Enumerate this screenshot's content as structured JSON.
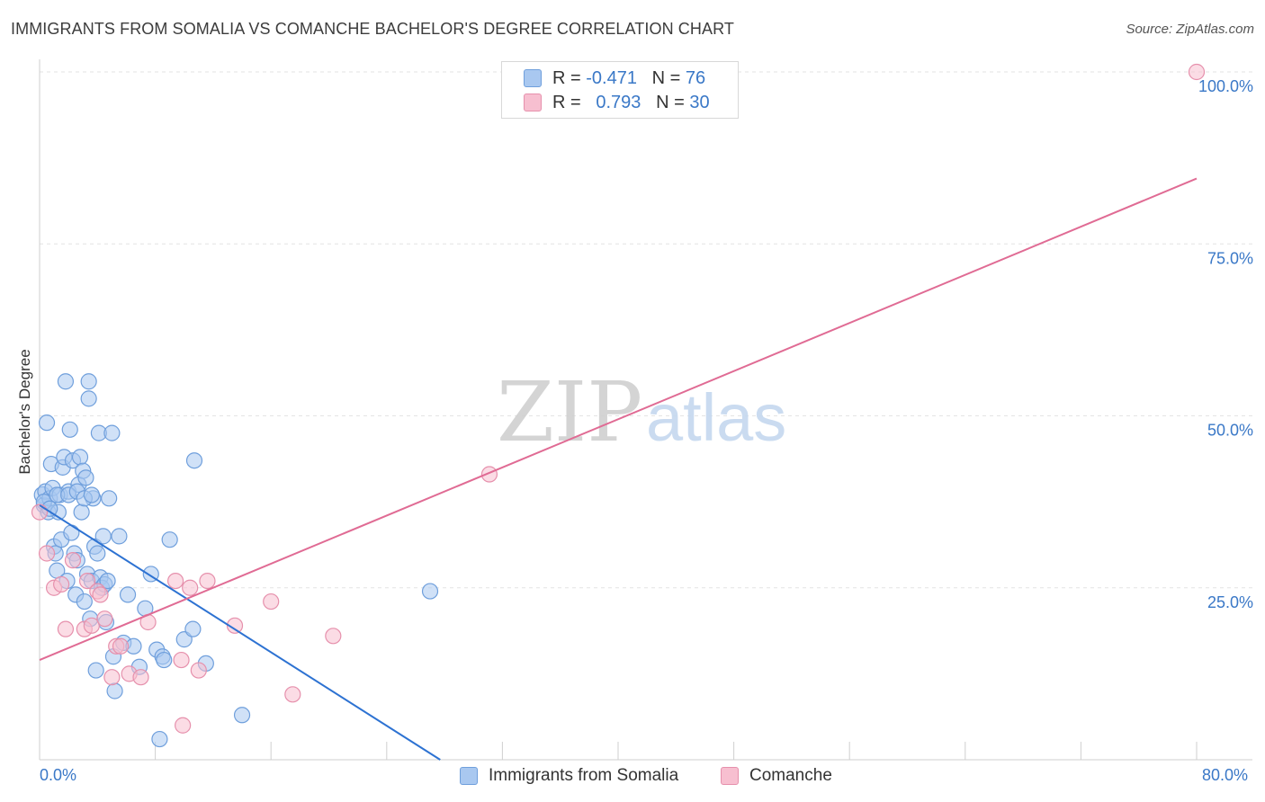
{
  "header": {
    "title": "IMMIGRANTS FROM SOMALIA VS COMANCHE BACHELOR'S DEGREE CORRELATION CHART",
    "source": "Source: ZipAtlas.com"
  },
  "stats_legend": {
    "rows": [
      {
        "r_label": "R =",
        "r_value": "-0.471",
        "n_label": "N =",
        "n_value": "76",
        "color": "#a9c8f0",
        "border": "#6f9fdc"
      },
      {
        "r_label": "R =",
        "r_value": "0.793",
        "n_label": "N =",
        "n_value": "30",
        "color": "#f7bfd0",
        "border": "#e690ac"
      }
    ]
  },
  "watermark": {
    "zip": "ZIP",
    "atlas": "atlas"
  },
  "chart_data": {
    "type": "scatter",
    "title": "IMMIGRANTS FROM SOMALIA VS COMANCHE BACHELOR'S DEGREE CORRELATION CHART",
    "xlabel": "",
    "ylabel": "Bachelor's Degree",
    "xlim": [
      0,
      80
    ],
    "ylim": [
      0,
      100
    ],
    "x_tick_labels": [
      "0.0%",
      "80.0%"
    ],
    "y_ticks": [
      25,
      50,
      75,
      100
    ],
    "y_tick_labels": [
      "25.0%",
      "50.0%",
      "75.0%",
      "100.0%"
    ],
    "grid": true,
    "legend": [
      "Immigrants from Somalia",
      "Comanche"
    ],
    "series": [
      {
        "name": "Immigrants from Somalia",
        "color": "#6f9fdc",
        "fill": "#a9c8f0",
        "line_color": "#2d72d2",
        "trend": {
          "x": [
            0,
            27.7
          ],
          "y": [
            37.0,
            0
          ]
        },
        "points": [
          [
            0.2,
            38.5
          ],
          [
            0.3,
            37.0
          ],
          [
            0.4,
            39.0
          ],
          [
            0.5,
            49.0
          ],
          [
            0.6,
            36.0
          ],
          [
            0.7,
            38.0
          ],
          [
            0.8,
            43.0
          ],
          [
            0.9,
            39.5
          ],
          [
            1.0,
            31.0
          ],
          [
            1.1,
            30.0
          ],
          [
            1.2,
            27.5
          ],
          [
            1.3,
            36.0
          ],
          [
            1.4,
            38.5
          ],
          [
            1.5,
            32.0
          ],
          [
            1.6,
            42.5
          ],
          [
            1.7,
            44.0
          ],
          [
            1.8,
            55.0
          ],
          [
            1.9,
            26.0
          ],
          [
            2.0,
            39.0
          ],
          [
            2.1,
            48.0
          ],
          [
            2.2,
            33.0
          ],
          [
            2.3,
            43.5
          ],
          [
            2.4,
            30.0
          ],
          [
            2.5,
            24.0
          ],
          [
            2.6,
            29.0
          ],
          [
            2.7,
            40.0
          ],
          [
            2.8,
            44.0
          ],
          [
            2.9,
            36.0
          ],
          [
            3.0,
            42.0
          ],
          [
            3.1,
            23.0
          ],
          [
            3.2,
            41.0
          ],
          [
            3.3,
            27.0
          ],
          [
            3.4,
            55.0
          ],
          [
            3.4,
            52.5
          ],
          [
            3.5,
            20.5
          ],
          [
            3.6,
            26.0
          ],
          [
            3.7,
            38.0
          ],
          [
            3.8,
            31.0
          ],
          [
            3.9,
            13.0
          ],
          [
            4.0,
            30.0
          ],
          [
            4.1,
            47.5
          ],
          [
            4.2,
            26.5
          ],
          [
            4.3,
            25.0
          ],
          [
            4.4,
            32.5
          ],
          [
            4.5,
            25.5
          ],
          [
            4.6,
            20.0
          ],
          [
            4.7,
            26.0
          ],
          [
            4.8,
            38.0
          ],
          [
            5.0,
            47.5
          ],
          [
            5.1,
            15.0
          ],
          [
            5.2,
            10.0
          ],
          [
            5.5,
            32.5
          ],
          [
            5.8,
            17.0
          ],
          [
            6.1,
            24.0
          ],
          [
            6.5,
            16.5
          ],
          [
            6.9,
            13.5
          ],
          [
            7.3,
            22.0
          ],
          [
            7.7,
            27.0
          ],
          [
            8.1,
            16.0
          ],
          [
            8.5,
            15.0
          ],
          [
            8.3,
            3.0
          ],
          [
            8.6,
            14.5
          ],
          [
            9.0,
            32.0
          ],
          [
            10.0,
            17.5
          ],
          [
            10.6,
            19.0
          ],
          [
            10.7,
            43.5
          ],
          [
            11.5,
            14.0
          ],
          [
            14.0,
            6.5
          ],
          [
            27.0,
            24.5
          ],
          [
            0.3,
            37.5
          ],
          [
            0.7,
            36.5
          ],
          [
            1.2,
            38.5
          ],
          [
            2.0,
            38.5
          ],
          [
            2.6,
            39.0
          ],
          [
            3.1,
            38.0
          ],
          [
            3.6,
            38.5
          ]
        ]
      },
      {
        "name": "Comanche",
        "color": "#e690ac",
        "fill": "#f7bfd0",
        "line_color": "#e06b94",
        "trend": {
          "x": [
            0,
            80
          ],
          "y": [
            14.5,
            84.5
          ]
        },
        "points": [
          [
            0.0,
            36.0
          ],
          [
            0.5,
            30.0
          ],
          [
            1.0,
            25.0
          ],
          [
            1.5,
            25.5
          ],
          [
            1.8,
            19.0
          ],
          [
            2.3,
            29.0
          ],
          [
            3.1,
            19.0
          ],
          [
            3.3,
            26.0
          ],
          [
            3.6,
            19.5
          ],
          [
            4.0,
            24.5
          ],
          [
            4.2,
            24.0
          ],
          [
            4.5,
            20.5
          ],
          [
            5.0,
            12.0
          ],
          [
            5.3,
            16.5
          ],
          [
            5.6,
            16.5
          ],
          [
            6.2,
            12.5
          ],
          [
            7.0,
            12.0
          ],
          [
            7.5,
            20.0
          ],
          [
            9.4,
            26.0
          ],
          [
            9.9,
            5.0
          ],
          [
            9.8,
            14.5
          ],
          [
            10.4,
            25.0
          ],
          [
            11.0,
            13.0
          ],
          [
            11.6,
            26.0
          ],
          [
            13.5,
            19.5
          ],
          [
            16.0,
            23.0
          ],
          [
            17.5,
            9.5
          ],
          [
            20.3,
            18.0
          ],
          [
            31.1,
            41.5
          ],
          [
            80.0,
            100.0
          ]
        ]
      }
    ]
  }
}
